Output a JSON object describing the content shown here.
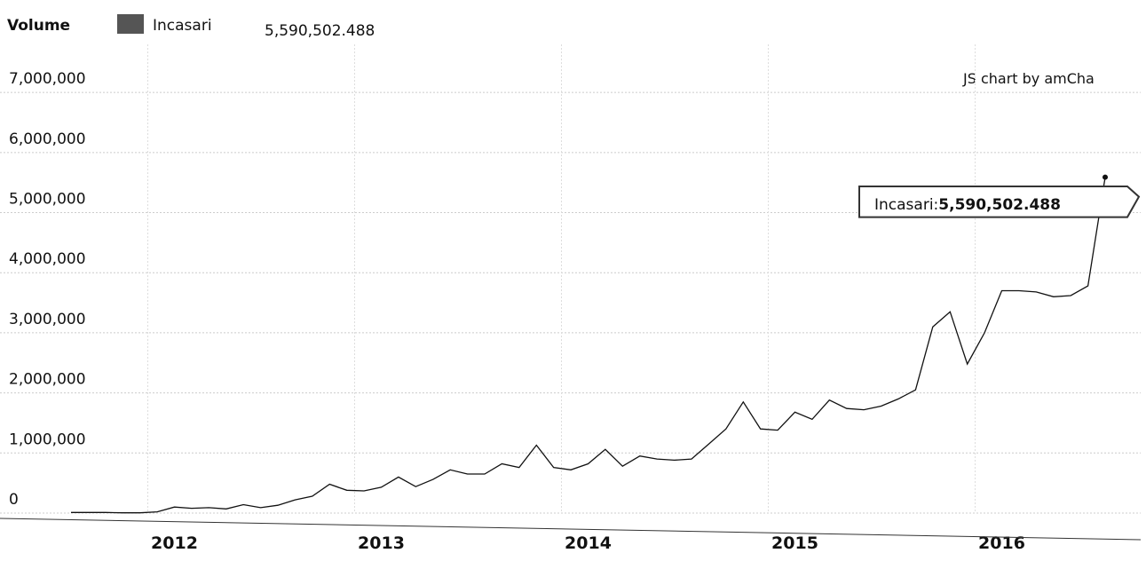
{
  "chart_data": {
    "type": "line",
    "title": "Volume",
    "credit": "JS chart by amCha",
    "readout": "5,590,502.488",
    "tooltip_label": "Incasari:",
    "categories": [
      null,
      null,
      null,
      null,
      null,
      null,
      "2012",
      null,
      null,
      null,
      null,
      null,
      null,
      null,
      null,
      null,
      null,
      null,
      "2013",
      null,
      null,
      null,
      null,
      null,
      null,
      null,
      null,
      null,
      null,
      null,
      "2014",
      null,
      null,
      null,
      null,
      null,
      null,
      null,
      null,
      null,
      null,
      null,
      "2015",
      null,
      null,
      null,
      null,
      null,
      null,
      null,
      null,
      null,
      null,
      null,
      "2016",
      null,
      null,
      null,
      null,
      null,
      null
    ],
    "series": [
      {
        "name": "Incasari",
        "color": "#111111",
        "swatch": "#555555",
        "values": [
          10000,
          10000,
          10000,
          5000,
          5000,
          20000,
          100000,
          80000,
          90000,
          70000,
          140000,
          90000,
          130000,
          220000,
          280000,
          480000,
          380000,
          370000,
          430000,
          600000,
          440000,
          560000,
          720000,
          650000,
          650000,
          820000,
          760000,
          1130000,
          760000,
          720000,
          820000,
          1060000,
          780000,
          950000,
          900000,
          880000,
          900000,
          1150000,
          1400000,
          1850000,
          1400000,
          1380000,
          1680000,
          1560000,
          1880000,
          1740000,
          1720000,
          1780000,
          1900000,
          2050000,
          3100000,
          3350000,
          2480000,
          3000000,
          3700000,
          3700000,
          3680000,
          3600000,
          3620000,
          3780000,
          5590502.488
        ]
      }
    ],
    "ylim": [
      0,
      7800000
    ],
    "yticks": [
      0,
      {
        "value": 1000000,
        "label": "1,000,000"
      },
      {
        "value": 2000000,
        "label": "2,000,000"
      },
      {
        "value": 3000000,
        "label": "3,000,000"
      },
      {
        "value": 4000000,
        "label": "4,000,000"
      },
      {
        "value": 5000000,
        "label": "5,000,000"
      },
      {
        "value": 6000000,
        "label": "6,000,000"
      },
      {
        "value": 7000000,
        "label": "7,000,000"
      }
    ],
    "grid": true
  }
}
